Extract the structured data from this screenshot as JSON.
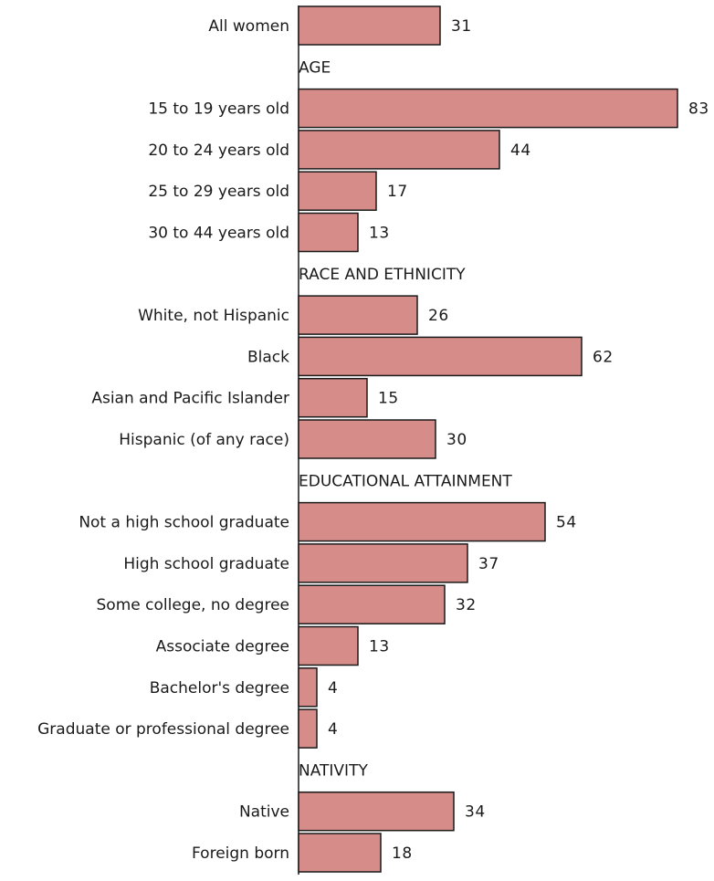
{
  "chart_data": {
    "type": "bar",
    "orientation": "horizontal",
    "bar_color": "#d68c88",
    "bar_stroke": "#1a1a1a",
    "xlim": [
      0,
      83
    ],
    "grid": false,
    "rows": [
      {
        "kind": "bar",
        "label": "All women",
        "value": 31
      },
      {
        "kind": "section",
        "label": "AGE"
      },
      {
        "kind": "bar",
        "label": "15 to 19 years old",
        "value": 83
      },
      {
        "kind": "bar",
        "label": "20 to 24 years old",
        "value": 44
      },
      {
        "kind": "bar",
        "label": "25 to 29 years old",
        "value": 17
      },
      {
        "kind": "bar",
        "label": "30 to 44 years old",
        "value": 13
      },
      {
        "kind": "section",
        "label": "RACE AND ETHNICITY"
      },
      {
        "kind": "bar",
        "label": "White, not Hispanic",
        "value": 26
      },
      {
        "kind": "bar",
        "label": "Black",
        "value": 62
      },
      {
        "kind": "bar",
        "label": "Asian and Pacific Islander",
        "value": 15
      },
      {
        "kind": "bar",
        "label": "Hispanic (of any race)",
        "value": 30
      },
      {
        "kind": "section",
        "label": "EDUCATIONAL ATTAINMENT"
      },
      {
        "kind": "bar",
        "label": "Not a high school graduate",
        "value": 54
      },
      {
        "kind": "bar",
        "label": "High school graduate",
        "value": 37
      },
      {
        "kind": "bar",
        "label": "Some college, no degree",
        "value": 32
      },
      {
        "kind": "bar",
        "label": "Associate degree",
        "value": 13
      },
      {
        "kind": "bar",
        "label": "Bachelor's degree",
        "value": 4
      },
      {
        "kind": "bar",
        "label": "Graduate or professional degree",
        "value": 4
      },
      {
        "kind": "section",
        "label": "NATIVITY"
      },
      {
        "kind": "bar",
        "label": "Native",
        "value": 34
      },
      {
        "kind": "bar",
        "label": "Foreign born",
        "value": 18
      }
    ]
  }
}
